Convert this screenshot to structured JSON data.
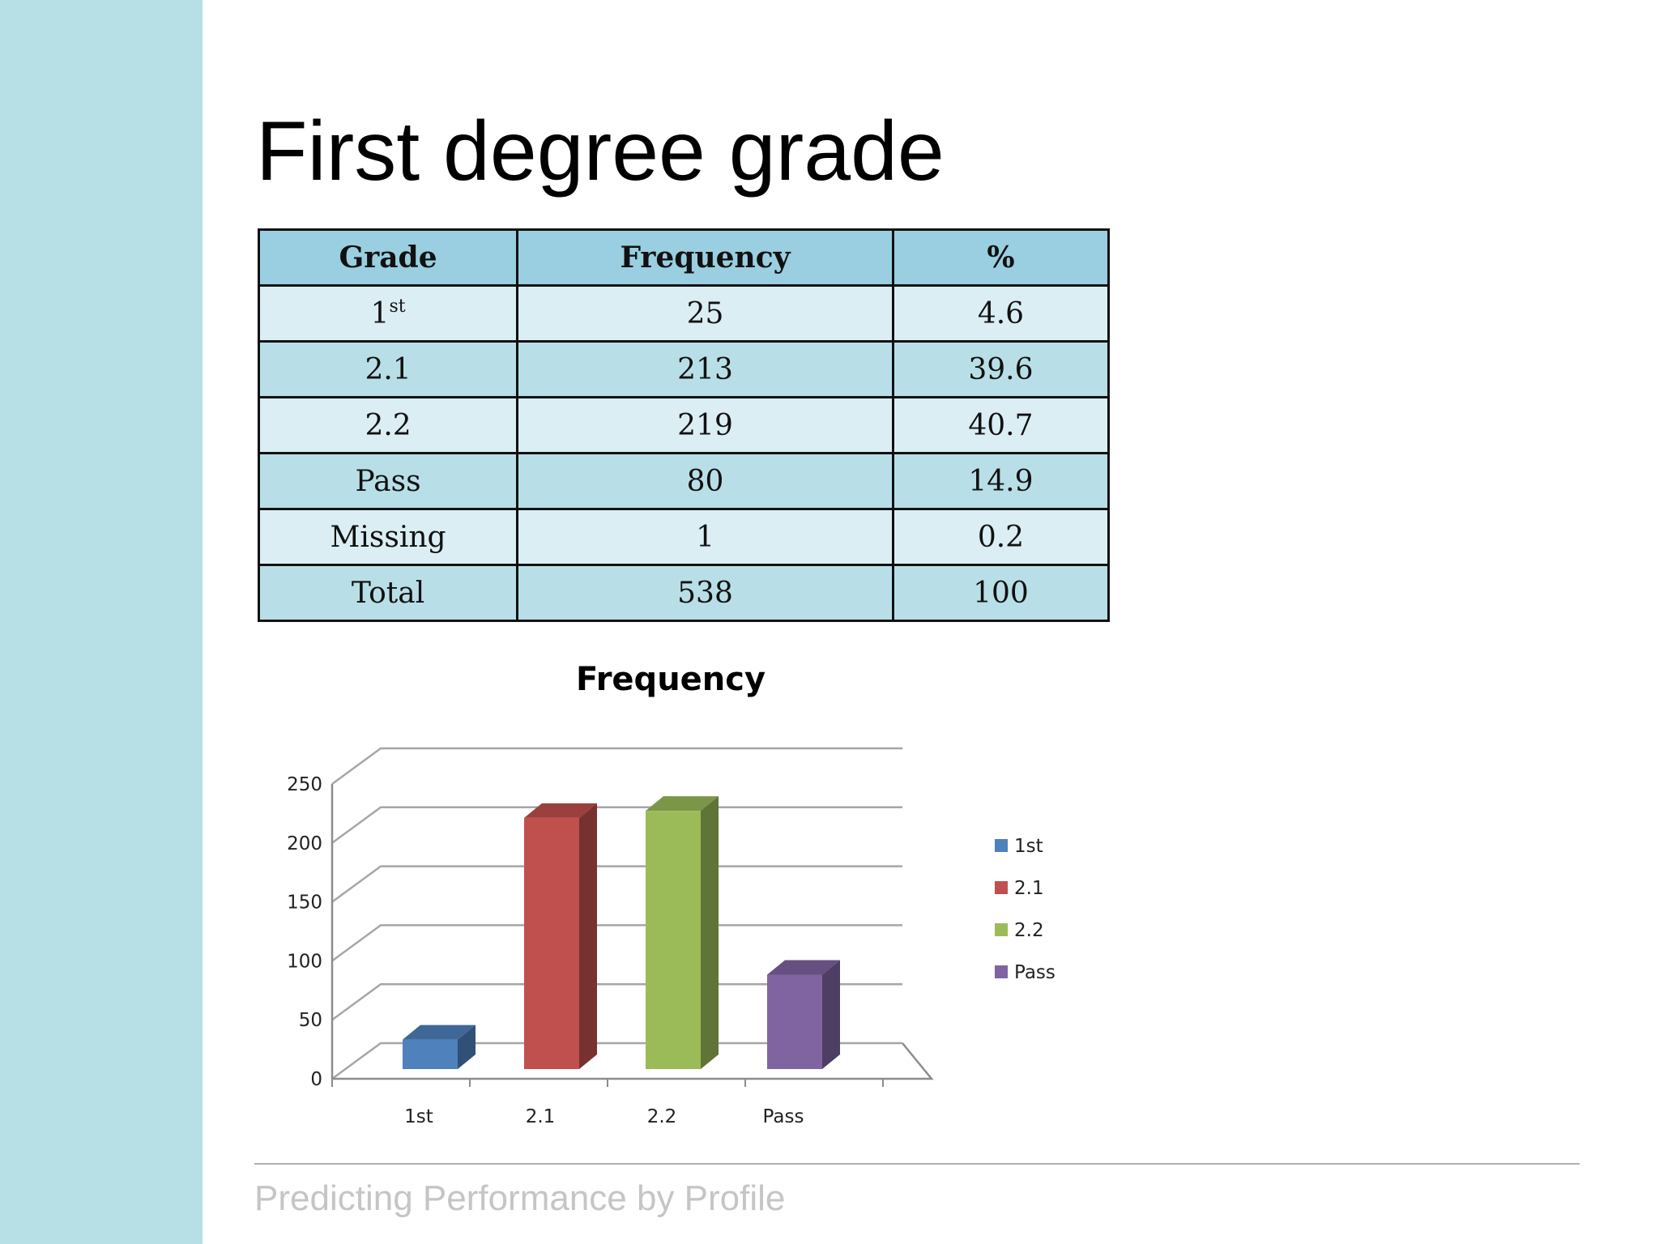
{
  "title": "First degree grade",
  "footer": "Predicting Performance by Profile",
  "colors": {
    "sidebar": "#b7e0e6",
    "header_bg": "#99cfe0",
    "row_light": "#dbeef3",
    "row_dark": "#b8dfe8"
  },
  "table": {
    "headers": [
      "Grade",
      "Frequency",
      "%"
    ],
    "rows": [
      {
        "grade": "1",
        "grade_sup": "st",
        "frequency": "25",
        "percent": "4.6"
      },
      {
        "grade": "2.1",
        "frequency": "213",
        "percent": "39.6"
      },
      {
        "grade": "2.2",
        "frequency": "219",
        "percent": "40.7"
      },
      {
        "grade": "Pass",
        "frequency": "80",
        "percent": "14.9"
      },
      {
        "grade": "Missing",
        "frequency": "1",
        "percent": "0.2"
      },
      {
        "grade": "Total",
        "frequency": "538",
        "percent": "100"
      }
    ]
  },
  "chart_data": {
    "type": "bar",
    "title": "Frequency",
    "categories": [
      "1st",
      "2.1",
      "2.2",
      "Pass"
    ],
    "values": [
      25,
      213,
      219,
      80
    ],
    "colors": [
      "#4f81bd",
      "#c0504d",
      "#9bbb59",
      "#8064a2"
    ],
    "ylim": [
      0,
      250
    ],
    "yticks": [
      0,
      50,
      100,
      150,
      200,
      250
    ],
    "grid": true,
    "three_d": true,
    "legend": {
      "position": "right",
      "entries": [
        "1st",
        "2.1",
        "2.2",
        "Pass"
      ]
    }
  }
}
